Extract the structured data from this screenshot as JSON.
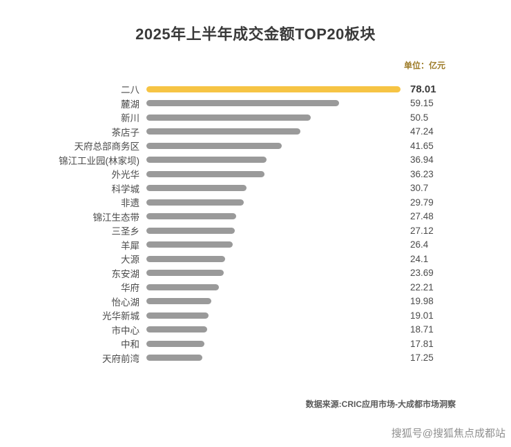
{
  "header": {
    "title": "2025年上半年成交金额TOP20板块",
    "unit_label": "单位：亿元"
  },
  "chart_data": {
    "type": "bar",
    "orientation": "horizontal",
    "title": "2025年上半年成交金额TOP20板块",
    "unit": "亿元",
    "categories": [
      "二八",
      "麓湖",
      "新川",
      "茶店子",
      "天府总部商务区",
      "锦江工业园(林家坝)",
      "外光华",
      "科学城",
      "非遗",
      "锦江生态带",
      "三圣乡",
      "羊犀",
      "大源",
      "东安湖",
      "华府",
      "怡心湖",
      "光华新城",
      "市中心",
      "中和",
      "天府前湾"
    ],
    "values": [
      78.01,
      59.15,
      50.5,
      47.24,
      41.65,
      36.94,
      36.23,
      30.7,
      29.79,
      27.48,
      27.12,
      26.4,
      24.1,
      23.69,
      22.21,
      19.98,
      19.01,
      18.71,
      17.81,
      17.25
    ],
    "xlim": [
      0,
      78.01
    ],
    "highlight_index": 0,
    "grid": false,
    "legend": false,
    "value_labels": "right",
    "colors": {
      "highlight_bar": "#f6c444",
      "bar": "#9a9a9a",
      "title": "#3a3a3a",
      "label": "#4a4a4a"
    }
  },
  "footer": {
    "source": "数据来源:CRIC应用市场-大成都市场洞察",
    "watermark": "搜狐号@搜狐焦点成都站"
  }
}
